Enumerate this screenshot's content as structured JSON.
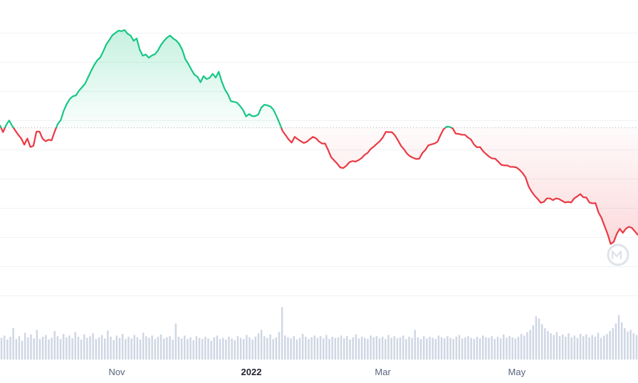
{
  "chart_data": {
    "type": "area",
    "x_tick_labels": [
      {
        "label": "Nov",
        "bold": false
      },
      {
        "label": "2022",
        "bold": true
      },
      {
        "label": "Mar",
        "bold": false
      },
      {
        "label": "May",
        "bold": false
      }
    ],
    "x_tick_positions": [
      0.183,
      0.394,
      0.6,
      0.81
    ],
    "baseline": 0.611,
    "ylim": [
      0,
      1
    ],
    "series": [
      {
        "values": [
          0.62,
          0.596,
          0.62,
          0.636,
          0.618,
          0.602,
          0.587,
          0.574,
          0.553,
          0.574,
          0.545,
          0.549,
          0.598,
          0.598,
          0.574,
          0.565,
          0.57,
          0.568,
          0.598,
          0.624,
          0.637,
          0.67,
          0.693,
          0.71,
          0.719,
          0.722,
          0.738,
          0.75,
          0.762,
          0.784,
          0.806,
          0.826,
          0.842,
          0.852,
          0.873,
          0.897,
          0.912,
          0.928,
          0.936,
          0.944,
          0.942,
          0.946,
          0.933,
          0.927,
          0.909,
          0.917,
          0.878,
          0.858,
          0.862,
          0.851,
          0.859,
          0.863,
          0.876,
          0.895,
          0.909,
          0.92,
          0.927,
          0.917,
          0.91,
          0.898,
          0.878,
          0.846,
          0.83,
          0.81,
          0.793,
          0.786,
          0.767,
          0.788,
          0.778,
          0.782,
          0.796,
          0.783,
          0.803,
          0.769,
          0.743,
          0.726,
          0.702,
          0.7,
          0.697,
          0.686,
          0.672,
          0.65,
          0.658,
          0.651,
          0.651,
          0.656,
          0.68,
          0.69,
          0.688,
          0.684,
          0.673,
          0.651,
          0.627,
          0.6,
          0.586,
          0.571,
          0.56,
          0.58,
          0.572,
          0.565,
          0.559,
          0.563,
          0.572,
          0.58,
          0.575,
          0.564,
          0.557,
          0.557,
          0.535,
          0.51,
          0.499,
          0.488,
          0.475,
          0.473,
          0.481,
          0.493,
          0.497,
          0.495,
          0.5,
          0.507,
          0.518,
          0.525,
          0.538,
          0.546,
          0.556,
          0.565,
          0.578,
          0.597,
          0.596,
          0.596,
          0.585,
          0.568,
          0.549,
          0.537,
          0.522,
          0.513,
          0.508,
          0.504,
          0.505,
          0.524,
          0.535,
          0.551,
          0.554,
          0.557,
          0.563,
          0.586,
          0.606,
          0.615,
          0.614,
          0.609,
          0.591,
          0.59,
          0.587,
          0.587,
          0.578,
          0.571,
          0.554,
          0.544,
          0.545,
          0.531,
          0.521,
          0.512,
          0.506,
          0.505,
          0.495,
          0.484,
          0.482,
          0.482,
          0.477,
          0.477,
          0.475,
          0.467,
          0.456,
          0.441,
          0.41,
          0.392,
          0.378,
          0.367,
          0.354,
          0.357,
          0.369,
          0.369,
          0.363,
          0.369,
          0.367,
          0.361,
          0.355,
          0.357,
          0.355,
          0.369,
          0.376,
          0.384,
          0.373,
          0.372,
          0.355,
          0.352,
          0.353,
          0.321,
          0.302,
          0.274,
          0.247,
          0.213,
          0.22,
          0.247,
          0.265,
          0.251,
          0.265,
          0.272,
          0.268,
          0.256,
          0.243
        ]
      }
    ],
    "volume_values": [
      0.38,
      0.42,
      0.35,
      0.4,
      0.55,
      0.36,
      0.41,
      0.33,
      0.47,
      0.39,
      0.44,
      0.37,
      0.52,
      0.36,
      0.4,
      0.43,
      0.35,
      0.38,
      0.5,
      0.41,
      0.36,
      0.45,
      0.39,
      0.42,
      0.37,
      0.48,
      0.4,
      0.35,
      0.44,
      0.38,
      0.41,
      0.46,
      0.36,
      0.39,
      0.43,
      0.37,
      0.51,
      0.4,
      0.34,
      0.42,
      0.38,
      0.45,
      0.36,
      0.4,
      0.37,
      0.43,
      0.39,
      0.35,
      0.47,
      0.41,
      0.38,
      0.42,
      0.36,
      0.4,
      0.44,
      0.37,
      0.39,
      0.41,
      0.35,
      0.63,
      0.4,
      0.37,
      0.42,
      0.36,
      0.39,
      0.34,
      0.41,
      0.38,
      0.36,
      0.4,
      0.37,
      0.33,
      0.39,
      0.42,
      0.36,
      0.38,
      0.35,
      0.4,
      0.37,
      0.34,
      0.41,
      0.38,
      0.36,
      0.43,
      0.39,
      0.35,
      0.4,
      0.46,
      0.52,
      0.41,
      0.38,
      0.44,
      0.36,
      0.39,
      0.48,
      0.92,
      0.42,
      0.39,
      0.37,
      0.41,
      0.35,
      0.38,
      0.45,
      0.4,
      0.36,
      0.39,
      0.42,
      0.38,
      0.41,
      0.37,
      0.43,
      0.36,
      0.4,
      0.38,
      0.39,
      0.42,
      0.37,
      0.41,
      0.35,
      0.39,
      0.44,
      0.37,
      0.4,
      0.38,
      0.36,
      0.42,
      0.39,
      0.41,
      0.37,
      0.4,
      0.36,
      0.43,
      0.38,
      0.41,
      0.37,
      0.39,
      0.42,
      0.36,
      0.4,
      0.38,
      0.52,
      0.39,
      0.36,
      0.41,
      0.37,
      0.4,
      0.38,
      0.36,
      0.42,
      0.39,
      0.37,
      0.41,
      0.38,
      0.36,
      0.4,
      0.43,
      0.37,
      0.39,
      0.41,
      0.38,
      0.36,
      0.4,
      0.37,
      0.42,
      0.39,
      0.38,
      0.41,
      0.36,
      0.4,
      0.37,
      0.44,
      0.38,
      0.41,
      0.39,
      0.37,
      0.4,
      0.45,
      0.42,
      0.48,
      0.52,
      0.6,
      0.76,
      0.72,
      0.62,
      0.55,
      0.5,
      0.46,
      0.43,
      0.48,
      0.41,
      0.44,
      0.4,
      0.46,
      0.39,
      0.42,
      0.38,
      0.45,
      0.41,
      0.44,
      0.39,
      0.43,
      0.4,
      0.47,
      0.38,
      0.42,
      0.45,
      0.5,
      0.55,
      0.63,
      0.78,
      0.65,
      0.55,
      0.49,
      0.52,
      0.46,
      0.43
    ]
  },
  "colors": {
    "up": "#16c784",
    "down": "#ea3943",
    "up_fill": "#16c784",
    "down_fill": "#ea3943",
    "grid": "#eff2f5",
    "baseline": "#a6b0c3",
    "volume": "#cfd6e4",
    "axis_text": "#58667e"
  },
  "grid": true,
  "watermark": {
    "icon": "coinmarketcap-logo-icon"
  }
}
